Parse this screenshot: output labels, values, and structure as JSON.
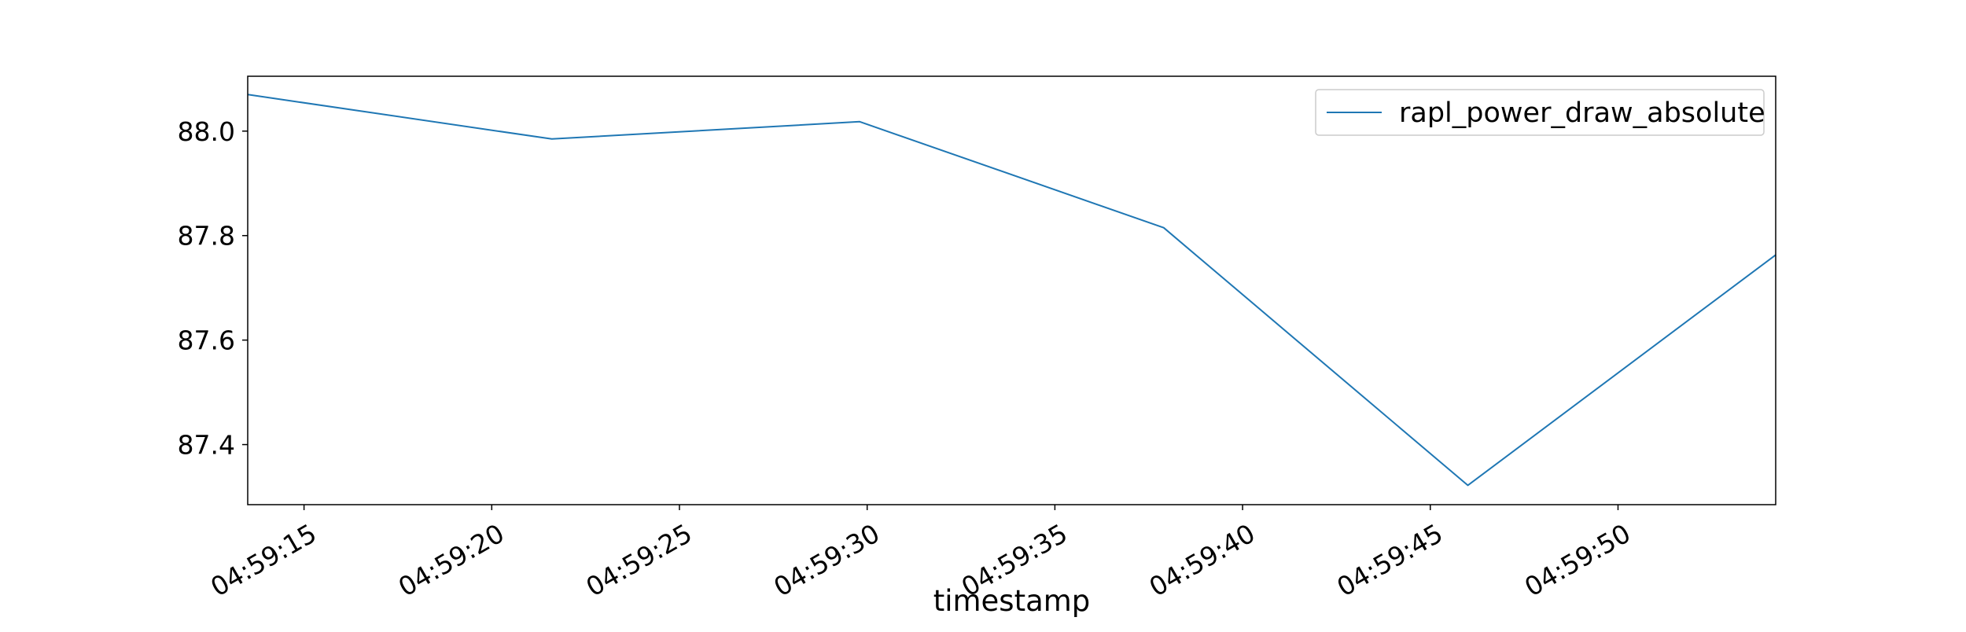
{
  "chart_data": {
    "type": "line",
    "title": "",
    "xlabel": "timestamp",
    "ylabel": "",
    "x_is_time": true,
    "x": [
      "04:59:13.5",
      "04:59:21.6",
      "04:59:29.8",
      "04:59:37.9",
      "04:59:46.0",
      "04:59:54.2"
    ],
    "xlim": [
      "04:59:13.5",
      "04:59:54.2"
    ],
    "xticks": [
      "04:59:15",
      "04:59:20",
      "04:59:25",
      "04:59:30",
      "04:59:35",
      "04:59:40",
      "04:59:45",
      "04:59:50"
    ],
    "ylim": [
      87.285,
      88.105
    ],
    "yticks": [
      87.4,
      87.6,
      87.8,
      88.0
    ],
    "ytick_labels": [
      "87.4",
      "87.6",
      "87.8",
      "88.0"
    ],
    "series": [
      {
        "name": "rapl_power_draw_absolute",
        "color": "#1f77b4",
        "values": [
          88.07,
          87.985,
          88.018,
          87.815,
          87.322,
          87.763
        ]
      }
    ],
    "grid": false,
    "legend_position": "upper right"
  }
}
